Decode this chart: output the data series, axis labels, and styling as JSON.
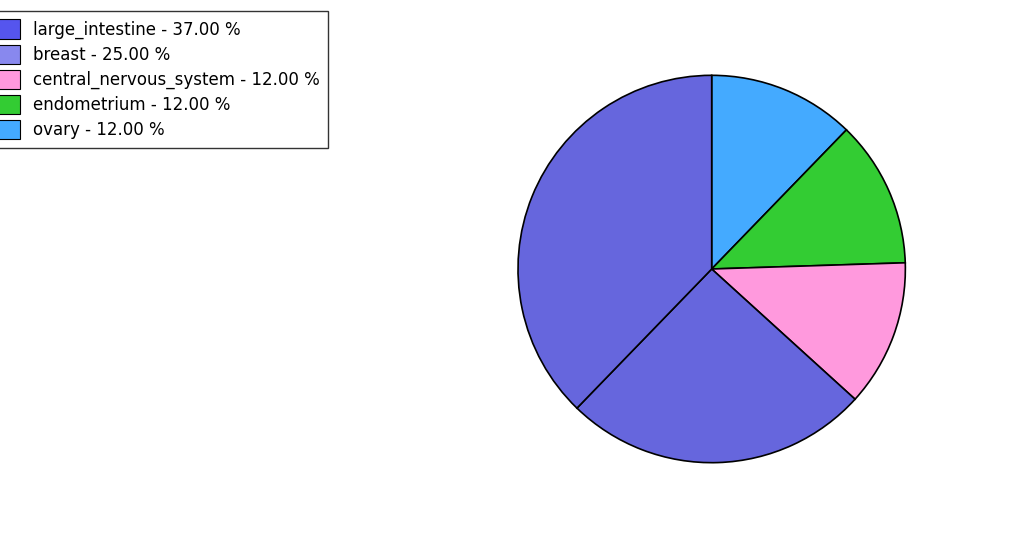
{
  "labels": [
    "large_intestine",
    "breast",
    "central_nervous_system",
    "endometrium",
    "ovary"
  ],
  "sizes": [
    37.0,
    25.0,
    12.0,
    12.0,
    12.0
  ],
  "colors": [
    "#6666dd",
    "#6666dd",
    "#ff99dd",
    "#33cc33",
    "#44aaff"
  ],
  "legend_labels": [
    "large_intestine - 37.00 %",
    "breast - 25.00 %",
    "central_nervous_system - 12.00 %",
    "endometrium - 12.00 %",
    "ovary - 12.00 %"
  ],
  "legend_colors": [
    "#5555ee",
    "#8888ee",
    "#ff99dd",
    "#33cc33",
    "#44aaff"
  ],
  "startangle": 90,
  "figure_width": 10.24,
  "figure_height": 5.38,
  "dpi": 100
}
